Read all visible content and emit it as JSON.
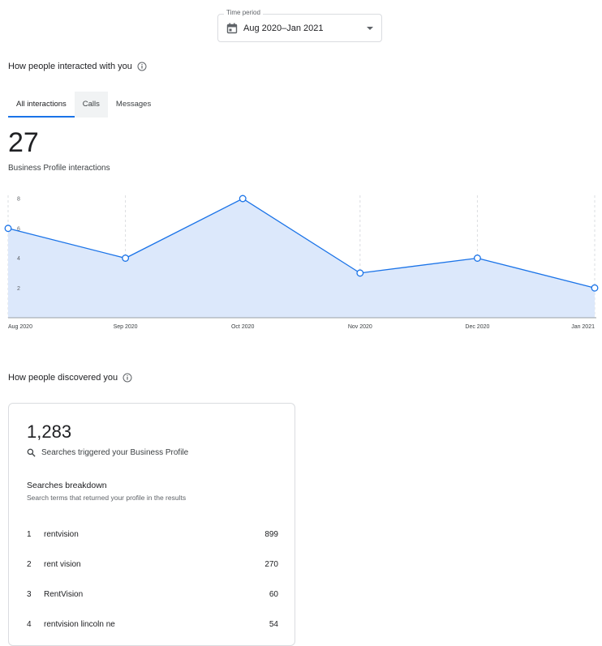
{
  "time_period": {
    "label": "Time period",
    "value": "Aug 2020–Jan 2021"
  },
  "interactions": {
    "title": "How people interacted with you",
    "tabs": [
      {
        "label": "All interactions",
        "active": true
      },
      {
        "label": "Calls",
        "active": false
      },
      {
        "label": "Messages",
        "active": false
      }
    ],
    "total": "27",
    "total_label": "Business Profile interactions"
  },
  "chart_data": {
    "type": "area",
    "categories": [
      "Aug 2020",
      "Sep 2020",
      "Oct 2020",
      "Nov 2020",
      "Dec 2020",
      "Jan 2021"
    ],
    "x_positions_months": [
      0,
      1,
      2,
      3,
      4,
      5
    ],
    "values": [
      6,
      4,
      8,
      3,
      4,
      2
    ],
    "ylim": [
      0,
      8
    ],
    "yticks": [
      2,
      4,
      6,
      8
    ],
    "grid": "vertical dashed",
    "colors": {
      "line": "#1a73e8",
      "fill": "#dce8fb"
    }
  },
  "discovery": {
    "title": "How people discovered you",
    "total": "1,283",
    "total_label": "Searches triggered your Business Profile",
    "breakdown_title": "Searches breakdown",
    "breakdown_subtitle": "Search terms that returned your profile in the results",
    "rows": [
      {
        "rank": "1",
        "term": "rentvision",
        "count": "899"
      },
      {
        "rank": "2",
        "term": "rent vision",
        "count": "270"
      },
      {
        "rank": "3",
        "term": "RentVision",
        "count": "60"
      },
      {
        "rank": "4",
        "term": "rentvision lincoln ne",
        "count": "54"
      }
    ]
  }
}
